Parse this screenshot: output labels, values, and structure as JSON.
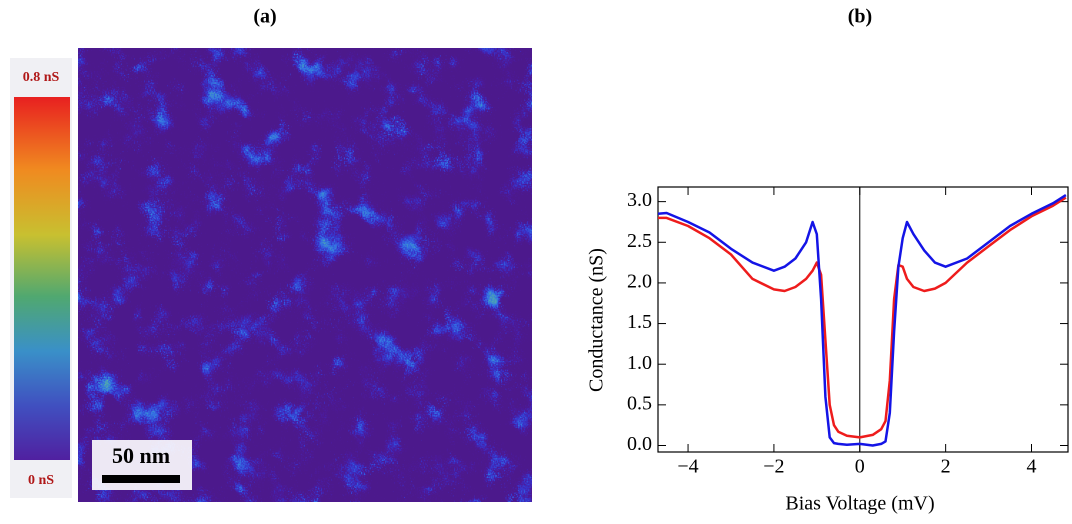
{
  "panel_a": {
    "label": "(a)",
    "colorbar_max": "0.8 nS",
    "colorbar_min": "0 nS",
    "scale_bar": "50 nm"
  },
  "chart_data": {
    "type": "line",
    "panel_label": "(b)",
    "x_label": "Bias Voltage (mV)",
    "y_label": "Conductance (nS)",
    "x": [
      -4.7,
      -4.5,
      -4,
      -3.5,
      -3,
      -2.5,
      -2,
      -1.75,
      -1.5,
      -1.25,
      -1.1,
      -1.0,
      -0.9,
      -0.8,
      -0.7,
      -0.6,
      -0.5,
      -0.3,
      0,
      0.3,
      0.5,
      0.6,
      0.7,
      0.8,
      0.9,
      1.0,
      1.1,
      1.25,
      1.5,
      1.75,
      2,
      2.5,
      3,
      3.5,
      4,
      4.5,
      4.8
    ],
    "series": [
      {
        "color": "#ee1c1c",
        "values": [
          2.8,
          2.8,
          2.7,
          2.55,
          2.35,
          2.05,
          1.92,
          1.9,
          1.95,
          2.05,
          2.15,
          2.25,
          2.1,
          1.3,
          0.5,
          0.25,
          0.17,
          0.12,
          0.1,
          0.13,
          0.2,
          0.3,
          0.8,
          1.8,
          2.22,
          2.2,
          2.05,
          1.95,
          1.9,
          1.93,
          2.0,
          2.25,
          2.45,
          2.65,
          2.82,
          2.95,
          3.05
        ]
      },
      {
        "color": "#1414e6",
        "values": [
          2.85,
          2.86,
          2.75,
          2.62,
          2.42,
          2.25,
          2.15,
          2.2,
          2.3,
          2.5,
          2.75,
          2.6,
          1.8,
          0.6,
          0.1,
          0.03,
          0.02,
          0.01,
          0.02,
          0.0,
          0.02,
          0.05,
          0.4,
          1.4,
          2.2,
          2.55,
          2.75,
          2.6,
          2.4,
          2.25,
          2.2,
          2.3,
          2.5,
          2.7,
          2.85,
          2.98,
          3.08
        ]
      }
    ],
    "xlim": [
      -4.7,
      4.85
    ],
    "ylim": [
      -0.08,
      3.18
    ],
    "xticks": [
      {
        "value": -4,
        "label": "−4"
      },
      {
        "value": -2,
        "label": "−2"
      },
      0,
      2,
      4
    ],
    "yticks": [
      {
        "value": 0,
        "label": "0.0"
      },
      0.5,
      {
        "value": 1,
        "label": "1.0"
      },
      1.5,
      {
        "value": 2,
        "label": "2.0"
      },
      2.5,
      {
        "value": 3,
        "label": "3.0"
      }
    ]
  }
}
